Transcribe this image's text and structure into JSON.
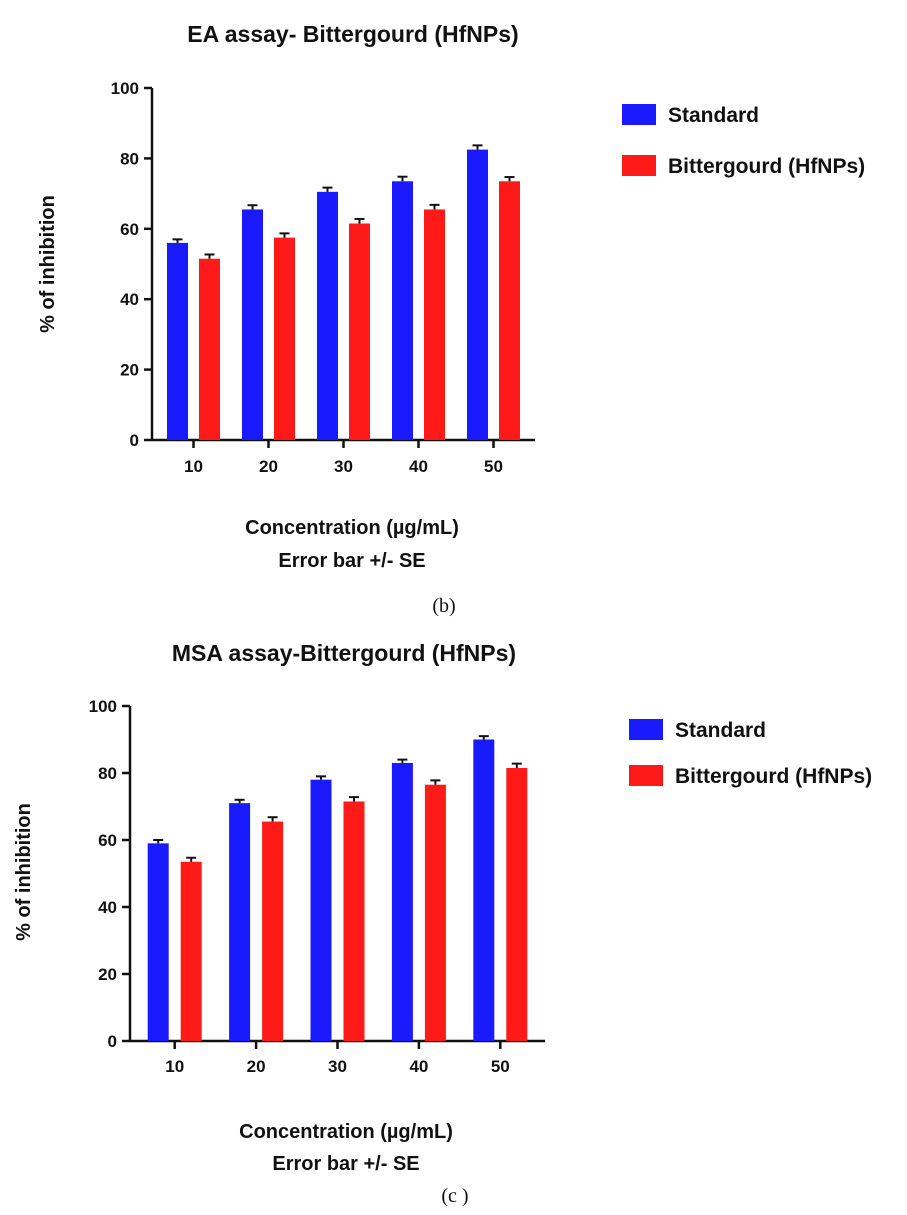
{
  "chart_data": [
    {
      "type": "bar",
      "title": "EA assay- Bittergourd (HfNPs)",
      "xlabel": "Concentration (µg/mL)",
      "xlabel_note": "Error bar +/- SE",
      "ylabel": "% of inhibition",
      "ylim": [
        0,
        100
      ],
      "yticks": [
        0,
        20,
        40,
        60,
        80,
        100
      ],
      "categories": [
        "10",
        "20",
        "30",
        "40",
        "50"
      ],
      "legend_position": "top-right",
      "panel_label": "(b)",
      "series": [
        {
          "name": "Standard",
          "color": "#1a1aff",
          "values": [
            56,
            65.5,
            70.5,
            73.5,
            82.5
          ],
          "errors": [
            1,
            1.2,
            1.2,
            1.3,
            1.2
          ]
        },
        {
          "name": "Bittergourd (HfNPs)",
          "color": "#ff1a1a",
          "values": [
            51.5,
            57.5,
            61.5,
            65.5,
            73.5
          ],
          "errors": [
            1.2,
            1.2,
            1.3,
            1.3,
            1.2
          ]
        }
      ]
    },
    {
      "type": "bar",
      "title": "MSA assay-Bittergourd (HfNPs)",
      "xlabel": "Concentration (µg/mL)",
      "xlabel_note": "Error bar +/- SE",
      "ylabel": "% of inhibition",
      "ylim": [
        0,
        100
      ],
      "yticks": [
        0,
        20,
        40,
        60,
        80,
        100
      ],
      "categories": [
        "10",
        "20",
        "30",
        "40",
        "50"
      ],
      "legend_position": "top-right",
      "panel_label": "(c )",
      "series": [
        {
          "name": "Standard",
          "color": "#1a1aff",
          "values": [
            59,
            71,
            78,
            83,
            90
          ],
          "errors": [
            1,
            1,
            1,
            1,
            1
          ]
        },
        {
          "name": "Bittergourd (HfNPs)",
          "color": "#ff1a1a",
          "values": [
            53.5,
            65.5,
            71.5,
            76.5,
            81.5
          ],
          "errors": [
            1.2,
            1.3,
            1.3,
            1.3,
            1.3
          ]
        }
      ]
    }
  ]
}
